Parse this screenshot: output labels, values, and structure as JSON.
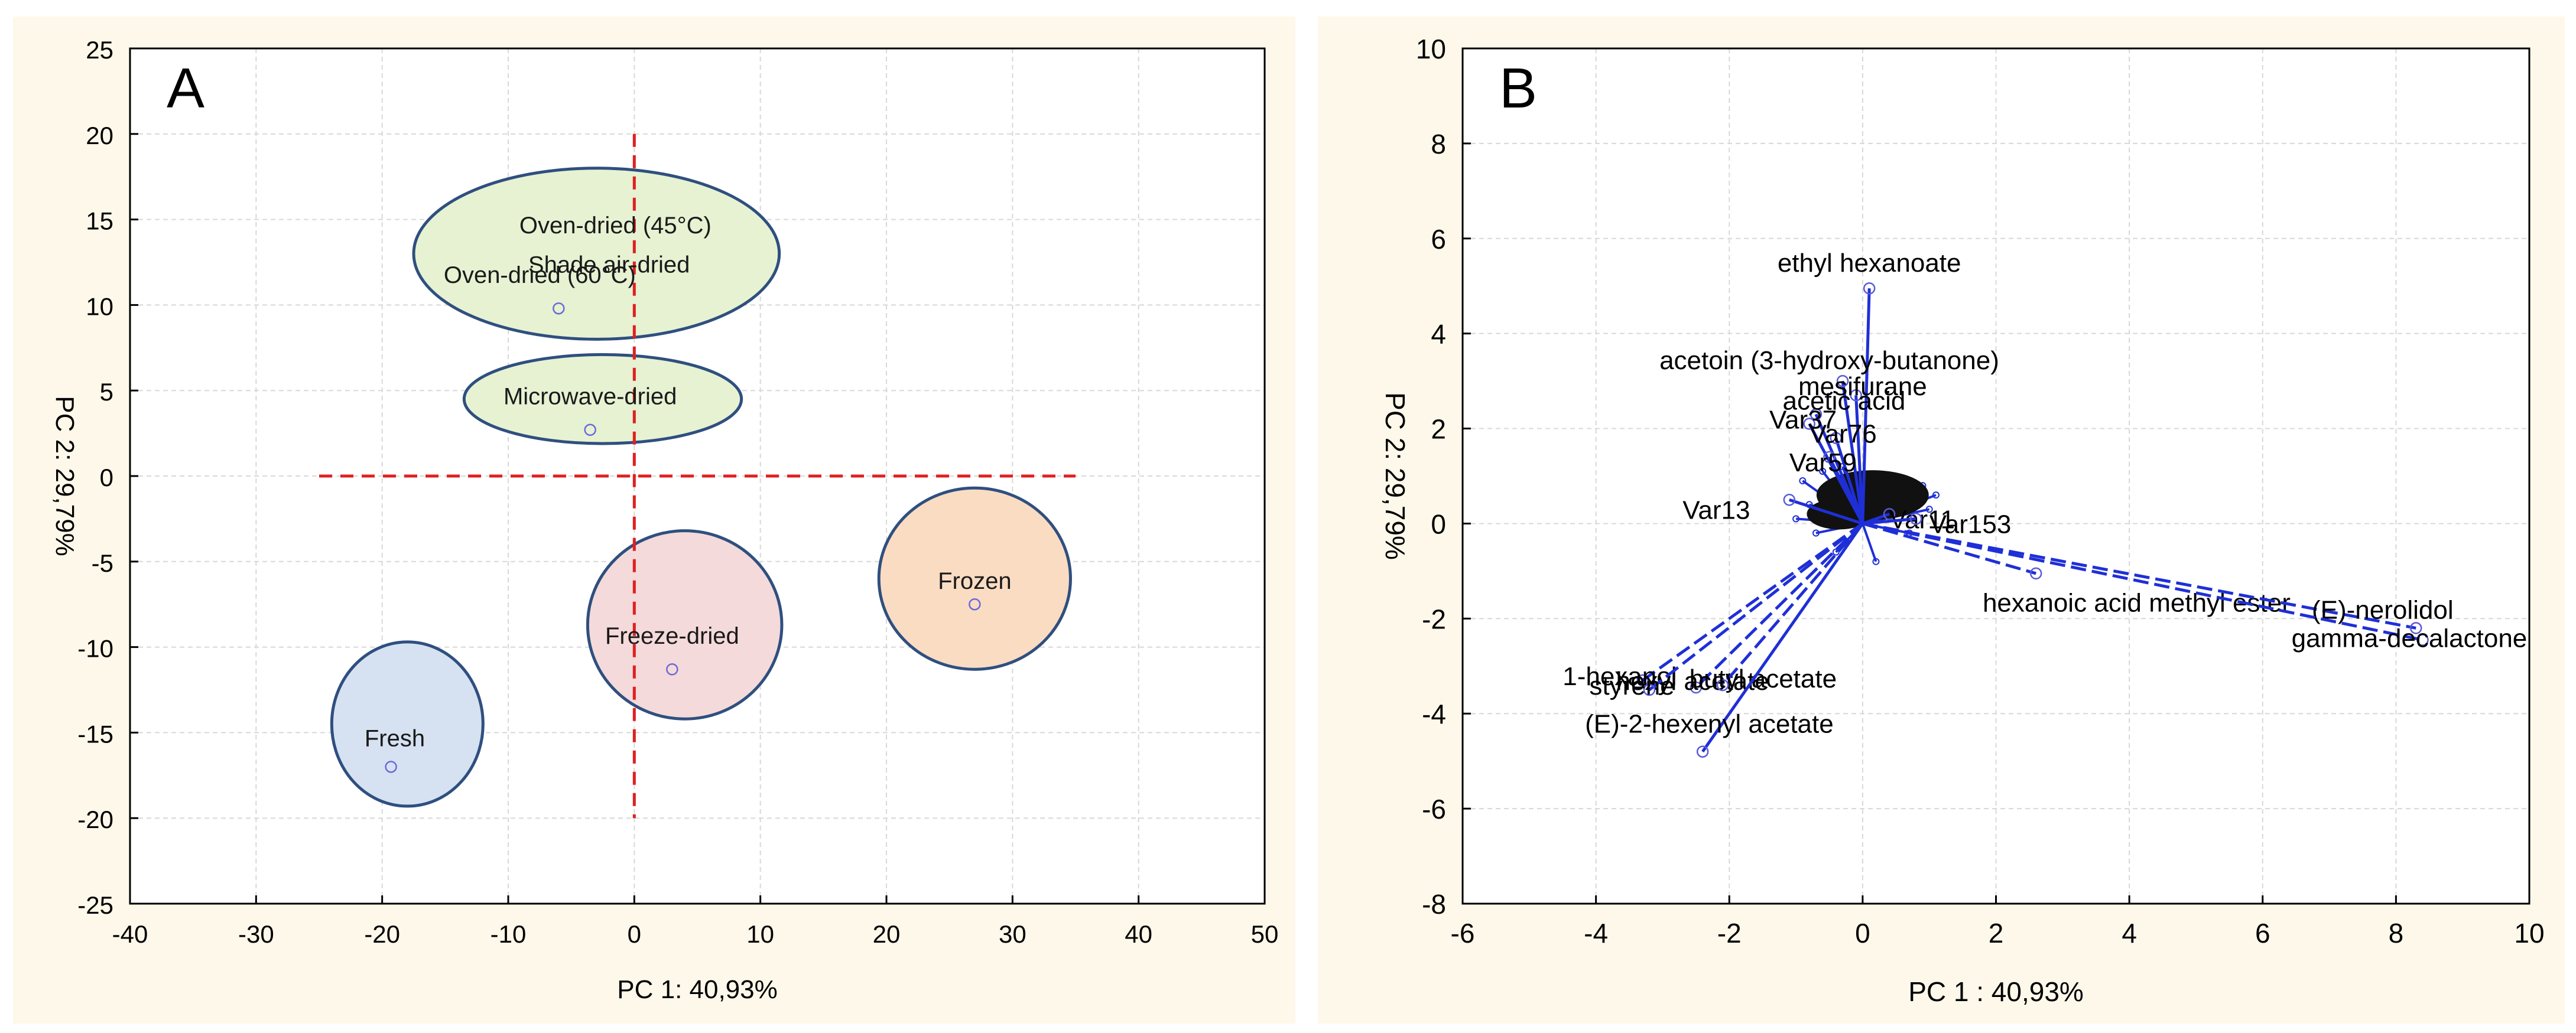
{
  "colors": {
    "panel_bg": "#fdf8ea",
    "axis": "#000000",
    "grid": "#d8d8d8",
    "red_dash": "#e02020",
    "ellipse_stroke": "#2f4f7f",
    "ellipse_green": "#e6f2d2",
    "ellipse_pink": "#f4dada",
    "ellipse_orange": "#fadcc3",
    "ellipse_blue": "#d6e2f2",
    "vector_blue": "#1f2fd6"
  },
  "chart_data": [
    {
      "type": "scatter",
      "panel_label": "A",
      "xlabel": "PC  1: 40,93%",
      "ylabel": "PC  2: 29,79%",
      "xlim": [
        -40,
        50
      ],
      "ylim": [
        -25,
        25
      ],
      "xticks": [
        -40,
        -30,
        -20,
        -10,
        0,
        10,
        20,
        30,
        40,
        50
      ],
      "yticks": [
        -25,
        -20,
        -15,
        -10,
        -5,
        0,
        5,
        10,
        15,
        20,
        25
      ],
      "grid": true,
      "groups": [
        {
          "labels": [
            "Oven-dried (45°C)",
            "Shade air-dried",
            "Oven-dried (60°C)"
          ],
          "center": [
            -3,
            13
          ],
          "radii": [
            14.5,
            5
          ],
          "color": "green",
          "points": [
            [
              -6,
              9.8
            ]
          ]
        },
        {
          "labels": [
            "Microwave-dried"
          ],
          "center": [
            -2.5,
            4.5
          ],
          "radii": [
            11,
            2.6
          ],
          "color": "green",
          "points": [
            [
              -3.5,
              2.7
            ]
          ]
        },
        {
          "labels": [
            "Freeze-dried"
          ],
          "center": [
            4,
            -8.7
          ],
          "radii": [
            7.7,
            5.5
          ],
          "color": "pink",
          "points": [
            [
              3,
              -11.3
            ]
          ]
        },
        {
          "labels": [
            "Frozen"
          ],
          "center": [
            27,
            -6
          ],
          "radii": [
            7.6,
            5.3
          ],
          "color": "orange",
          "points": [
            [
              27,
              -7.5
            ]
          ]
        },
        {
          "labels": [
            "Fresh"
          ],
          "center": [
            -18,
            -14.5
          ],
          "radii": [
            6,
            4.8
          ],
          "color": "blue",
          "points": [
            [
              -19.3,
              -17
            ]
          ]
        }
      ],
      "reference_lines": {
        "horizontal_y": 0,
        "horizontal_x_range": [
          -25,
          35
        ],
        "vertical_x": 0,
        "vertical_y_range": [
          -20,
          20
        ]
      }
    },
    {
      "type": "biplot",
      "panel_label": "B",
      "xlabel": "PC  1 : 40,93%",
      "ylabel": "PC  2: 29,79%",
      "xlim": [
        -6,
        10
      ],
      "ylim": [
        -8,
        10
      ],
      "xticks": [
        -6,
        -4,
        -2,
        0,
        2,
        4,
        6,
        8,
        10
      ],
      "yticks": [
        -8,
        -6,
        -4,
        -2,
        0,
        2,
        4,
        6,
        8,
        10
      ],
      "grid": true,
      "vectors": [
        {
          "label": "ethyl hexanoate",
          "x": 0.1,
          "y": 4.95
        },
        {
          "label": "acetoin (3-hydroxy-butanone)",
          "x": -0.3,
          "y": 3.0
        },
        {
          "label": "mesifurane",
          "x": -0.1,
          "y": 2.7
        },
        {
          "label": "acetic acid",
          "x": -0.7,
          "y": 2.3
        },
        {
          "label": "Var37",
          "x": -0.8,
          "y": 2.1
        },
        {
          "label": "Var76",
          "x": -0.4,
          "y": 1.8
        },
        {
          "label": "Var59",
          "x": -0.5,
          "y": 1.4
        },
        {
          "label": "Var13",
          "x": -1.1,
          "y": 0.5
        },
        {
          "label": "Var11",
          "x": 0.4,
          "y": 0.2
        },
        {
          "label": "Var153",
          "x": 0.8,
          "y": 0.1
        },
        {
          "label": "hexanoic acid methyl ester",
          "x": 2.6,
          "y": -1.05
        },
        {
          "label": "(E)-nerolidol",
          "x": 8.3,
          "y": -2.2
        },
        {
          "label": "gamma-decalactone",
          "x": 8.4,
          "y": -2.45
        },
        {
          "label": "1-hexanol",
          "x": -3.3,
          "y": -3.3
        },
        {
          "label": "hexyl acetate",
          "x": -2.5,
          "y": -3.45
        },
        {
          "label": "butyl acetate",
          "x": -2.1,
          "y": -3.4
        },
        {
          "label": "styrene",
          "x": -3.2,
          "y": -3.5
        },
        {
          "label": "(E)-2-hexenyl acetate",
          "x": -2.4,
          "y": -4.8
        }
      ],
      "dense_cluster_vectors": [
        [
          -0.9,
          0.9
        ],
        [
          -0.6,
          1.1
        ],
        [
          -0.3,
          1.2
        ],
        [
          0.2,
          1.0
        ],
        [
          0.5,
          0.9
        ],
        [
          0.9,
          0.8
        ],
        [
          1.1,
          0.6
        ],
        [
          -0.8,
          0.4
        ],
        [
          -0.5,
          0.7
        ],
        [
          0.6,
          0.5
        ],
        [
          0.3,
          0.3
        ],
        [
          -0.2,
          0.5
        ],
        [
          1.0,
          0.3
        ],
        [
          -0.7,
          -0.2
        ],
        [
          -0.4,
          -0.6
        ],
        [
          0.2,
          -0.8
        ],
        [
          -1.0,
          0.1
        ],
        [
          0.7,
          -0.2
        ]
      ]
    }
  ]
}
